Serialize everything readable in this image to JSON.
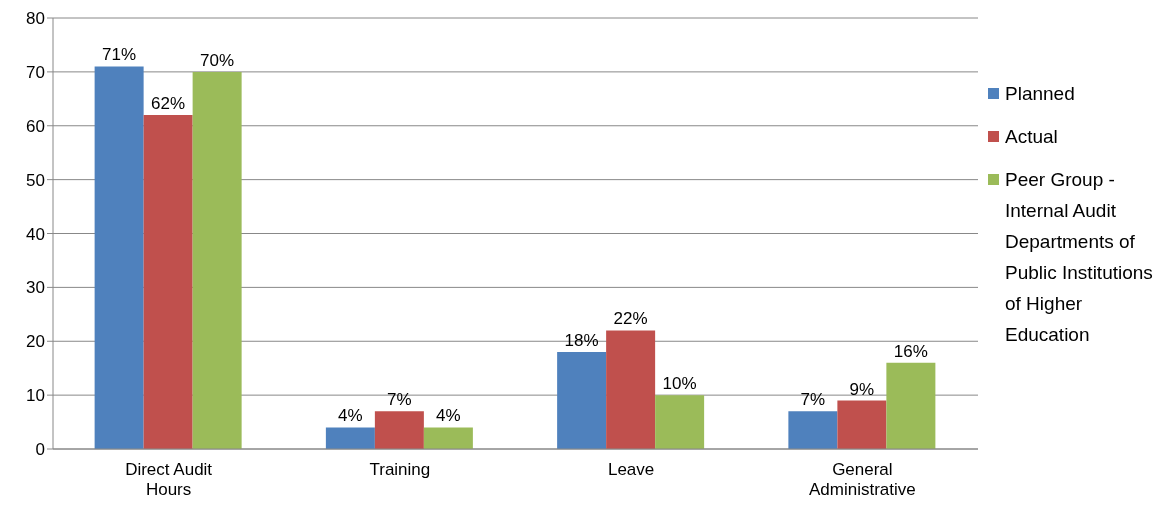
{
  "chart_data": {
    "type": "bar",
    "categories": [
      "Direct Audit Hours",
      "Training",
      "Leave",
      "General Administrative"
    ],
    "series": [
      {
        "name": "Planned",
        "color": "#4f81bd",
        "values": [
          71,
          4,
          18,
          7
        ],
        "value_labels": [
          "71%",
          "4%",
          "18%",
          "7%"
        ]
      },
      {
        "name": "Actual",
        "color": "#c0504d",
        "values": [
          62,
          7,
          22,
          9
        ],
        "value_labels": [
          "62%",
          "7%",
          "22%",
          "9%"
        ]
      },
      {
        "name": "Peer Group - Internal Audit Departments of Public Institutions of Higher Education",
        "color": "#9bbb59",
        "values": [
          70,
          4,
          10,
          16
        ],
        "value_labels": [
          "70%",
          "4%",
          "10%",
          "16%"
        ]
      }
    ],
    "ylim": [
      0,
      80
    ],
    "yticks": [
      0,
      10,
      20,
      30,
      40,
      50,
      60,
      70,
      80
    ],
    "grid": "y",
    "legend": "right"
  }
}
